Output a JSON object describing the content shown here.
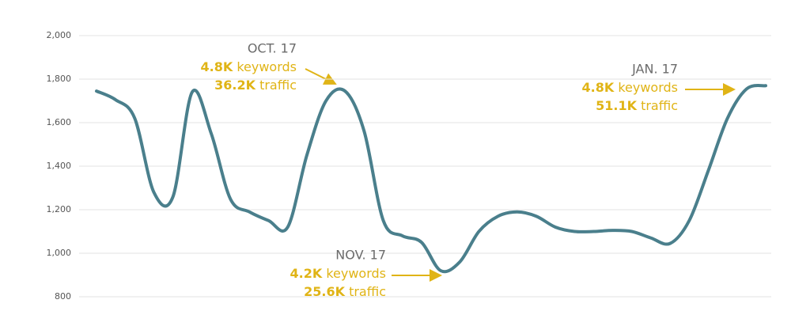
{
  "chart_data": {
    "type": "line",
    "values": [
      1745,
      1705,
      1620,
      1280,
      1260,
      1740,
      1550,
      1250,
      1190,
      1150,
      1120,
      1450,
      1700,
      1745,
      1560,
      1150,
      1080,
      1050,
      920,
      960,
      1100,
      1170,
      1190,
      1170,
      1120,
      1100,
      1100,
      1105,
      1100,
      1070,
      1045,
      1150,
      1380,
      1620,
      1755,
      1770
    ],
    "color": "#4a7f8c",
    "ylim": [
      800,
      2000
    ],
    "yticks": [
      800,
      {
        "value": 1000,
        "label": "1,000"
      },
      {
        "value": 1200,
        "label": "1,200"
      },
      {
        "value": 1400,
        "label": "1,400"
      },
      {
        "value": 1600,
        "label": "1,600"
      },
      {
        "value": 1800,
        "label": "1,800"
      },
      {
        "value": 2000,
        "label": "2,000"
      }
    ],
    "grid": true,
    "annotations": [
      {
        "date": "OCT. 17",
        "keywords": "4.8K",
        "keywords_label": "keywords",
        "traffic": "36.2K",
        "traffic_label": "traffic"
      },
      {
        "date": "NOV. 17",
        "keywords": "4.2K",
        "keywords_label": "keywords",
        "traffic": "25.6K",
        "traffic_label": "traffic"
      },
      {
        "date": "JAN. 17",
        "keywords": "4.8K",
        "keywords_label": "keywords",
        "traffic": "51.1K",
        "traffic_label": "traffic"
      }
    ]
  }
}
